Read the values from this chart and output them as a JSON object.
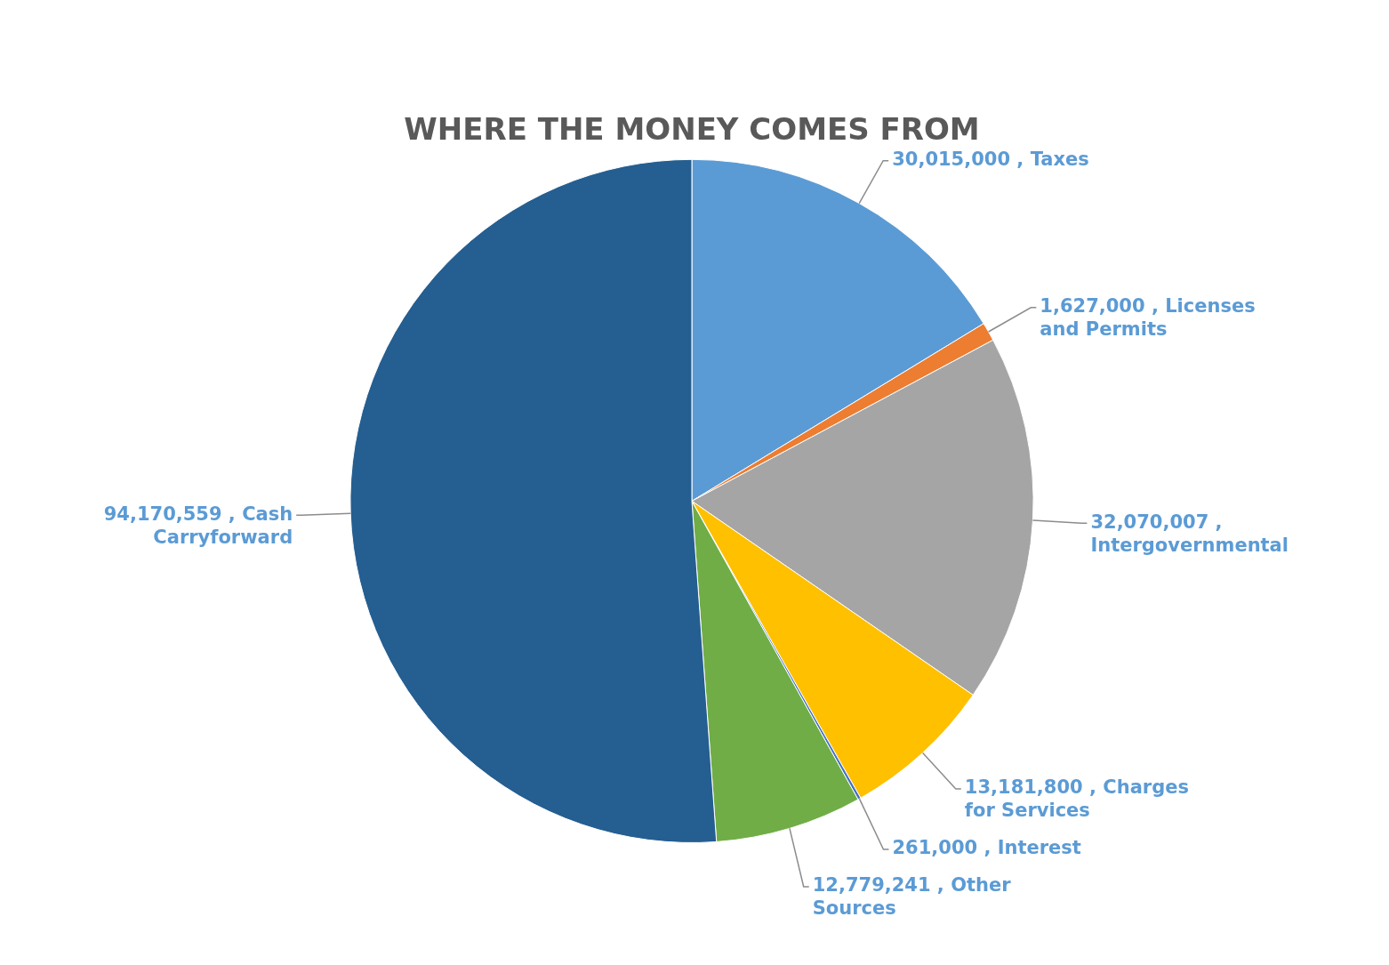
{
  "chart_data": {
    "type": "pie",
    "title": "WHERE THE MONEY COMES FROM",
    "categories": [
      "Taxes",
      "Licenses and Permits",
      "Intergovernmental",
      "Charges for Services",
      "Interest",
      "Other Sources",
      "Cash Carryforward"
    ],
    "values": [
      30015000,
      1627000,
      32070007,
      13181800,
      261000,
      12779241,
      94170559
    ],
    "colors": [
      "#5b9bd5",
      "#ed7d31",
      "#a5a5a5",
      "#ffc000",
      "#4472c4",
      "#70ad47",
      "#255e91"
    ],
    "value_labels": [
      "30,015,000 ,",
      "1,627,000 ,",
      "32,070,007 ,",
      "13,181,800 ,",
      "261,000 ,",
      "12,779,241 ,",
      "94,170,559 ,"
    ],
    "legend": false
  }
}
